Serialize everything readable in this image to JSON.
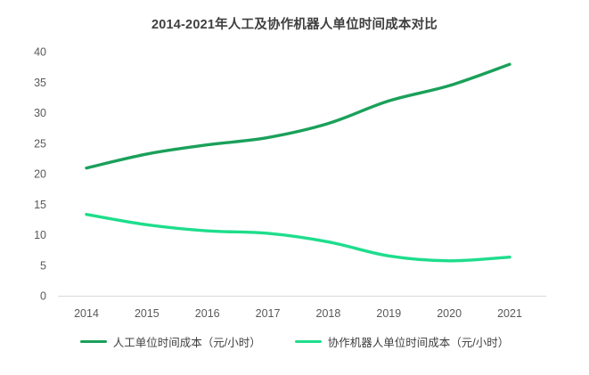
{
  "chart_data": {
    "type": "line",
    "title": "2014-2021年人工及协作机器人单位时间成本对比",
    "categories": [
      "2014",
      "2015",
      "2016",
      "2017",
      "2018",
      "2019",
      "2020",
      "2021"
    ],
    "series": [
      {
        "name": "人工单位时间成本（元/小时）",
        "color": "#1aa05a",
        "values": [
          21,
          23.3,
          24.8,
          26,
          28.3,
          32,
          34.5,
          38
        ]
      },
      {
        "name": "协作机器人单位时间成本（元/小时）",
        "color": "#1edd8c",
        "values": [
          13.4,
          11.7,
          10.7,
          10.3,
          8.9,
          6.6,
          5.8,
          6.4
        ]
      }
    ],
    "xlabel": "",
    "ylabel": "",
    "ylim": [
      0,
      40
    ],
    "yticks": [
      0,
      5,
      10,
      15,
      20,
      25,
      30,
      35,
      40
    ],
    "grid": false,
    "legend_position": "bottom",
    "axis_line_color": "#d9d9d9",
    "tick_label_color": "#595959",
    "title_color": "#3f3f3f"
  }
}
